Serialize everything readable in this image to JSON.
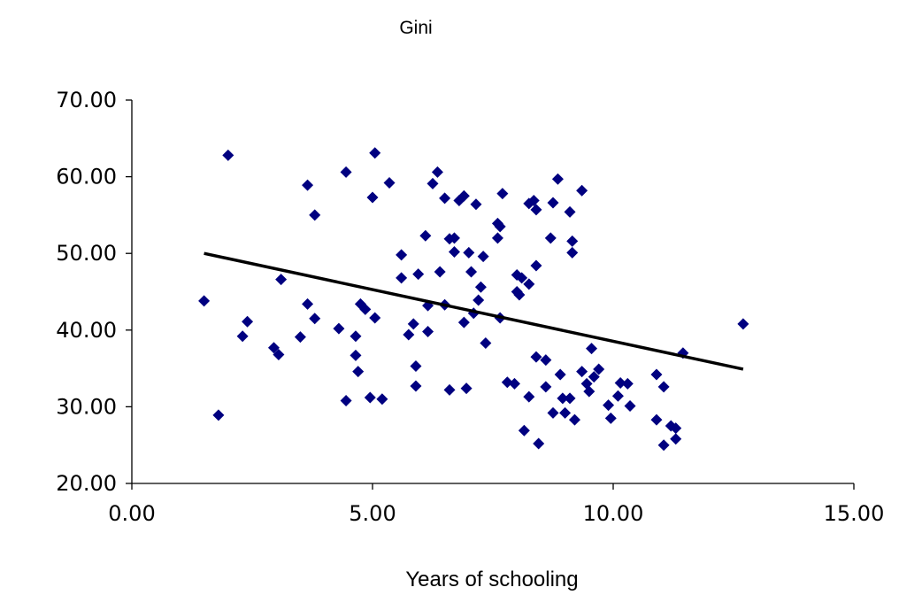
{
  "chart_data": {
    "type": "scatter",
    "title": "Gini",
    "xlabel": "Years of schooling",
    "ylabel": "",
    "xlim": [
      0,
      15
    ],
    "ylim": [
      20,
      70
    ],
    "x_ticks": [
      0,
      5,
      10,
      15
    ],
    "y_ticks": [
      20,
      30,
      40,
      50,
      60,
      70
    ],
    "x_tick_labels": [
      "0.00",
      "5.00",
      "10.00",
      "15.00"
    ],
    "y_tick_labels": [
      "20.00",
      "30.00",
      "40.00",
      "50.00",
      "60.00",
      "70.00"
    ],
    "grid": false,
    "legend": "none",
    "point_color": "#000080",
    "trendline": {
      "x": [
        1.5,
        12.7
      ],
      "y": [
        50.0,
        34.9
      ],
      "color": "#000000"
    },
    "series": [
      {
        "points": [
          [
            1.5,
            43.8
          ],
          [
            1.8,
            28.9
          ],
          [
            2.0,
            62.8
          ],
          [
            2.3,
            39.2
          ],
          [
            2.4,
            41.1
          ],
          [
            2.95,
            37.7
          ],
          [
            3.05,
            36.8
          ],
          [
            3.1,
            46.6
          ],
          [
            3.5,
            39.1
          ],
          [
            3.65,
            58.9
          ],
          [
            3.65,
            43.4
          ],
          [
            3.8,
            55.0
          ],
          [
            3.8,
            41.5
          ],
          [
            4.3,
            40.2
          ],
          [
            4.45,
            60.6
          ],
          [
            4.45,
            30.8
          ],
          [
            4.65,
            39.2
          ],
          [
            4.65,
            36.7
          ],
          [
            4.7,
            34.6
          ],
          [
            4.75,
            43.4
          ],
          [
            4.85,
            42.7
          ],
          [
            4.95,
            31.2
          ],
          [
            5.0,
            57.3
          ],
          [
            5.05,
            63.1
          ],
          [
            5.05,
            41.6
          ],
          [
            5.2,
            31.0
          ],
          [
            5.35,
            59.2
          ],
          [
            5.6,
            46.8
          ],
          [
            5.6,
            49.8
          ],
          [
            5.75,
            39.4
          ],
          [
            5.85,
            40.8
          ],
          [
            5.9,
            35.3
          ],
          [
            5.9,
            32.7
          ],
          [
            5.95,
            47.3
          ],
          [
            6.1,
            52.3
          ],
          [
            6.15,
            43.2
          ],
          [
            6.15,
            39.8
          ],
          [
            6.25,
            59.1
          ],
          [
            6.35,
            60.6
          ],
          [
            6.4,
            47.6
          ],
          [
            6.5,
            57.2
          ],
          [
            6.5,
            43.3
          ],
          [
            6.6,
            51.9
          ],
          [
            6.6,
            32.2
          ],
          [
            6.7,
            52.0
          ],
          [
            6.7,
            50.2
          ],
          [
            6.8,
            56.9
          ],
          [
            6.9,
            57.5
          ],
          [
            6.9,
            41.0
          ],
          [
            6.95,
            32.4
          ],
          [
            7.0,
            50.1
          ],
          [
            7.05,
            47.6
          ],
          [
            7.1,
            42.2
          ],
          [
            7.15,
            56.4
          ],
          [
            7.2,
            43.9
          ],
          [
            7.25,
            45.6
          ],
          [
            7.3,
            49.6
          ],
          [
            7.35,
            38.3
          ],
          [
            7.6,
            53.9
          ],
          [
            7.6,
            52.0
          ],
          [
            7.65,
            53.5
          ],
          [
            7.65,
            41.6
          ],
          [
            7.7,
            57.8
          ],
          [
            7.8,
            33.2
          ],
          [
            7.95,
            33.0
          ],
          [
            8.0,
            47.2
          ],
          [
            8.0,
            45.0
          ],
          [
            8.05,
            44.6
          ],
          [
            8.1,
            46.8
          ],
          [
            8.15,
            26.9
          ],
          [
            8.25,
            56.5
          ],
          [
            8.25,
            46.0
          ],
          [
            8.25,
            31.3
          ],
          [
            8.35,
            56.9
          ],
          [
            8.4,
            55.7
          ],
          [
            8.4,
            48.4
          ],
          [
            8.4,
            36.5
          ],
          [
            8.45,
            25.2
          ],
          [
            8.6,
            36.1
          ],
          [
            8.6,
            32.6
          ],
          [
            8.7,
            52.0
          ],
          [
            8.75,
            56.6
          ],
          [
            8.75,
            29.2
          ],
          [
            8.85,
            59.7
          ],
          [
            8.9,
            34.2
          ],
          [
            8.95,
            31.1
          ],
          [
            9.0,
            29.2
          ],
          [
            9.1,
            55.4
          ],
          [
            9.1,
            31.1
          ],
          [
            9.15,
            51.6
          ],
          [
            9.15,
            50.1
          ],
          [
            9.2,
            28.3
          ],
          [
            9.35,
            58.2
          ],
          [
            9.35,
            34.6
          ],
          [
            9.45,
            33.0
          ],
          [
            9.5,
            32.0
          ],
          [
            9.55,
            37.6
          ],
          [
            9.6,
            33.9
          ],
          [
            9.7,
            34.9
          ],
          [
            9.9,
            30.2
          ],
          [
            9.95,
            28.5
          ],
          [
            10.1,
            31.4
          ],
          [
            10.15,
            33.1
          ],
          [
            10.3,
            33.0
          ],
          [
            10.35,
            30.1
          ],
          [
            10.9,
            34.2
          ],
          [
            10.9,
            28.3
          ],
          [
            11.05,
            32.6
          ],
          [
            11.05,
            25.0
          ],
          [
            11.2,
            27.5
          ],
          [
            11.3,
            27.2
          ],
          [
            11.3,
            25.8
          ],
          [
            11.45,
            37.0
          ],
          [
            12.7,
            40.8
          ]
        ]
      }
    ]
  }
}
